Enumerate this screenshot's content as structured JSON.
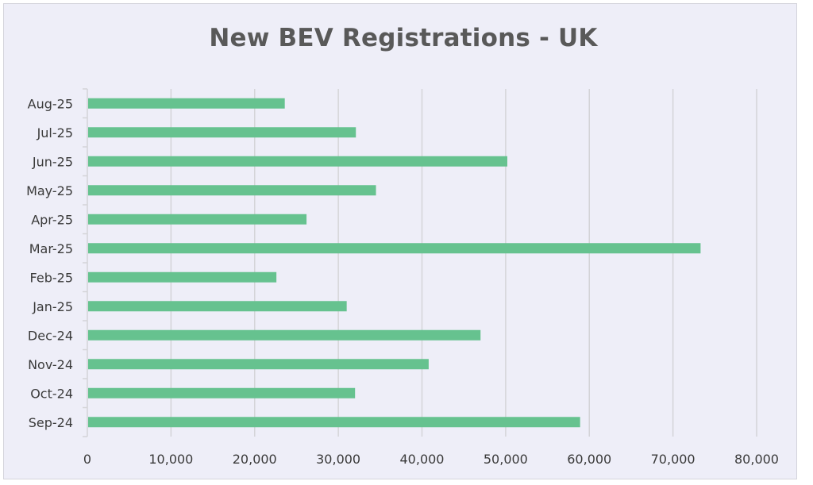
{
  "chart_data": {
    "type": "bar",
    "orientation": "horizontal",
    "title": "New BEV Registrations - UK",
    "xlabel": "",
    "ylabel": "",
    "categories": [
      "Sep-24",
      "Oct-24",
      "Nov-24",
      "Dec-24",
      "Jan-25",
      "Feb-25",
      "Mar-25",
      "Apr-25",
      "May-25",
      "Jun-25",
      "Jul-25",
      "Aug-25"
    ],
    "values": [
      58900,
      32000,
      40800,
      47000,
      31000,
      22600,
      73300,
      26200,
      34500,
      50200,
      32100,
      23600
    ],
    "xlim": [
      0,
      80000
    ],
    "xticks": [
      0,
      10000,
      20000,
      30000,
      40000,
      50000,
      60000,
      70000,
      80000
    ],
    "xtick_labels": [
      "0",
      "10,000",
      "20,000",
      "30,000",
      "40,000",
      "50,000",
      "60,000",
      "70,000",
      "80,000"
    ],
    "grid": true,
    "legend": "none",
    "colors": {
      "bar": "#66c28f",
      "grid": "#d4d4d8",
      "background": "#eeeef8",
      "text": "#3a3a3a",
      "title": "#595959"
    }
  }
}
